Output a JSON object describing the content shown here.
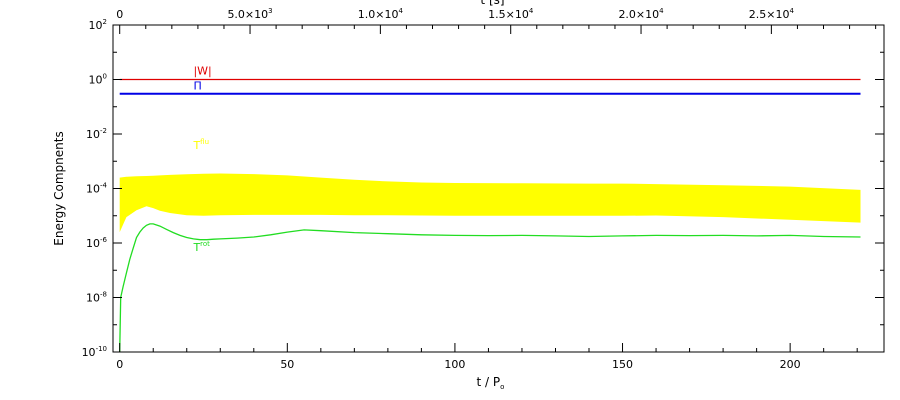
{
  "chart_data": {
    "type": "line",
    "title": "",
    "xlabel_base": "t / P",
    "xlabel_sub": "o",
    "ylabel": "Energy Compnents",
    "top_xlabel": "t [s]",
    "xlim": [
      -2,
      228
    ],
    "ylim_log10": [
      -10,
      2
    ],
    "x_ticks": [
      "0",
      "50",
      "100",
      "150",
      "200"
    ],
    "x_tick_values": [
      0,
      50,
      100,
      150,
      200
    ],
    "top_ticks": [
      {
        "value_s": 0,
        "base": "0",
        "exp": ""
      },
      {
        "value_s": 5000,
        "base": "5.0×10",
        "exp": "3"
      },
      {
        "value_s": 10000,
        "base": "1.0×10",
        "exp": "4"
      },
      {
        "value_s": 15000,
        "base": "1.5×10",
        "exp": "4"
      },
      {
        "value_s": 20000,
        "base": "2.0×10",
        "exp": "4"
      },
      {
        "value_s": 25000,
        "base": "2.5×10",
        "exp": "4"
      }
    ],
    "seconds_per_period": 128.6,
    "y_ticks": [
      {
        "exp": 2,
        "label": "2"
      },
      {
        "exp": 0,
        "label": "0"
      },
      {
        "exp": -2,
        "label": "-2"
      },
      {
        "exp": -4,
        "label": "-4"
      },
      {
        "exp": -6,
        "label": "-6"
      },
      {
        "exp": -8,
        "label": "-8"
      },
      {
        "exp": -10,
        "label": "-10"
      }
    ],
    "y_tick_base": "10",
    "series": [
      {
        "name": "|W|",
        "sup": "",
        "color": "#e00000",
        "style": "line",
        "x": [
          0,
          50,
          100,
          150,
          200,
          221
        ],
        "y_log10": [
          0,
          0,
          0,
          0,
          0,
          0
        ]
      },
      {
        "name": "Π",
        "sup": "",
        "color": "#0000e6",
        "style": "line",
        "x": [
          0,
          50,
          100,
          150,
          200,
          221
        ],
        "y_log10": [
          -0.52,
          -0.52,
          -0.52,
          -0.52,
          -0.52,
          -0.52
        ]
      },
      {
        "name": "T",
        "sup": "rot",
        "color": "#22dd22",
        "style": "line",
        "x": [
          0,
          0.3,
          1,
          2,
          3,
          4,
          5,
          6,
          7,
          8,
          9,
          10,
          12,
          14,
          16,
          18,
          20,
          22,
          24,
          26,
          28,
          30,
          35,
          40,
          45,
          50,
          55,
          60,
          70,
          80,
          90,
          100,
          110,
          120,
          130,
          140,
          150,
          160,
          170,
          180,
          190,
          200,
          210,
          221
        ],
        "y_log10": [
          -10,
          -8.0,
          -7.6,
          -7.1,
          -6.6,
          -6.2,
          -5.8,
          -5.6,
          -5.45,
          -5.35,
          -5.3,
          -5.3,
          -5.38,
          -5.5,
          -5.62,
          -5.72,
          -5.8,
          -5.85,
          -5.88,
          -5.88,
          -5.86,
          -5.85,
          -5.82,
          -5.78,
          -5.7,
          -5.6,
          -5.52,
          -5.55,
          -5.62,
          -5.66,
          -5.7,
          -5.72,
          -5.73,
          -5.72,
          -5.74,
          -5.76,
          -5.74,
          -5.72,
          -5.73,
          -5.72,
          -5.74,
          -5.72,
          -5.76,
          -5.78
        ]
      },
      {
        "name": "T",
        "sup": "flu",
        "color": "#ffff00",
        "style": "band",
        "x": [
          0,
          2,
          5,
          8,
          10,
          12,
          15,
          20,
          25,
          30,
          40,
          50,
          60,
          70,
          80,
          90,
          100,
          120,
          140,
          150,
          160,
          180,
          200,
          221
        ],
        "upper_log10": [
          -3.6,
          -3.57,
          -3.55,
          -3.54,
          -3.53,
          -3.52,
          -3.5,
          -3.48,
          -3.46,
          -3.45,
          -3.47,
          -3.52,
          -3.6,
          -3.68,
          -3.74,
          -3.78,
          -3.8,
          -3.81,
          -3.82,
          -3.82,
          -3.84,
          -3.88,
          -3.93,
          -4.05
        ],
        "lower_log10": [
          -5.6,
          -5.05,
          -4.8,
          -4.65,
          -4.72,
          -4.82,
          -4.9,
          -4.98,
          -5.0,
          -4.98,
          -4.97,
          -4.97,
          -4.97,
          -4.98,
          -4.98,
          -4.99,
          -5.0,
          -5.0,
          -5.0,
          -5.0,
          -4.99,
          -5.05,
          -5.15,
          -5.25
        ]
      }
    ],
    "labels": [
      {
        "series": 0,
        "x": 22,
        "y_log10": 0.18
      },
      {
        "series": 1,
        "x": 22,
        "y_log10": -0.37
      },
      {
        "series": 3,
        "x": 22,
        "y_log10": -2.55
      },
      {
        "series": 2,
        "x": 22,
        "y_log10": -6.3
      }
    ],
    "grid": false,
    "legend": "none"
  }
}
